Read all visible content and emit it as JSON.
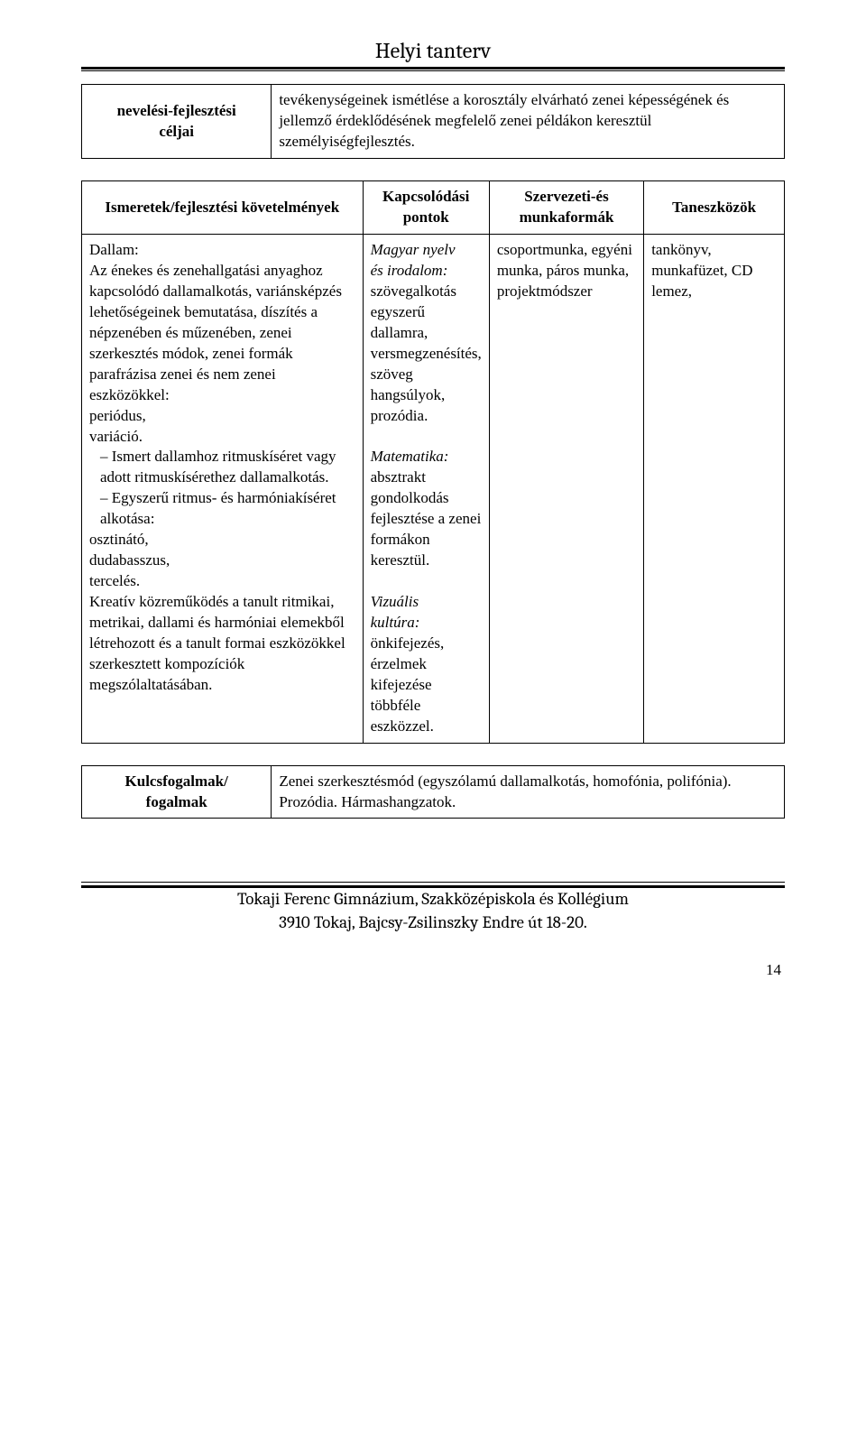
{
  "page_title": "Helyi tanterv",
  "table1": {
    "left_line1": "nevelési-fejlesztési",
    "left_line2": "céljai",
    "right": "tevékenységeinek ismétlése a korosztály elvárható zenei képességének és jellemző érdeklődésének megfelelő zenei példákon keresztül személyiségfejlesztés."
  },
  "table2": {
    "headers": {
      "c1": "Ismeretek/fejlesztési követelmények",
      "c2a": "Kapcsolódási",
      "c2b": "pontok",
      "c3a": "Szervezeti-és",
      "c3b": "munkaformák",
      "c4": "Taneszközök"
    },
    "col1": {
      "p1": "Dallam:",
      "p2": "Az énekes és zenehallgatási anyaghoz kapcsolódó dallamalkotás, variánsképzés lehetőségeinek bemutatása, díszítés a népzenében és műzenében, zenei szerkesztés módok, zenei formák parafrázisa zenei és nem zenei eszközökkel:",
      "p3": "periódus,",
      "p4": "variáció.",
      "d1": "Ismert dallamhoz ritmuskíséret vagy adott ritmuskísérethez dallamalkotás.",
      "d2": "Egyszerű ritmus- és harmóniakíséret alkotása:",
      "p5": "osztinátó,",
      "p6": "dudabasszus,",
      "p7": "tercelés.",
      "p8": "Kreatív közreműködés a tanult ritmikai, metrikai, dallami és harmóniai elemekből létrehozott és a tanult formai eszközökkel szerkesztett kompozíciók megszólaltatásában."
    },
    "col2": {
      "s1a": "Magyar nyelv",
      "s1b": "és irodalom:",
      "s1c": "szövegalkotás egyszerű dallamra, versmegzenésítés, szöveg hangsúlyok, prozódia.",
      "s2a": "Matematika:",
      "s2b": "absztrakt gondolkodás fejlesztése a zenei formákon keresztül.",
      "s3a": "Vizuális",
      "s3b": "kultúra:",
      "s3c": "önkifejezés, érzelmek kifejezése többféle eszközzel."
    },
    "col3": "csoportmunka, egyéni munka, páros munka, projektmódszer",
    "col4": "tankönyv, munkafüzet, CD lemez,"
  },
  "table3": {
    "left_line1": "Kulcsfogalmak/",
    "left_line2": "fogalmak",
    "right_l1": "Zenei szerkesztésmód (egyszólamú dallamalkotás, homofónia, polifónia).",
    "right_l2": "Prozódia. Hármashangzatok."
  },
  "footer": {
    "l1": "Tokaji Ferenc Gimnázium, Szakközépiskola és Kollégium",
    "l2": "3910 Tokaj, Bajcsy-Zsilinszky Endre út 18-20."
  },
  "page_number": "14"
}
